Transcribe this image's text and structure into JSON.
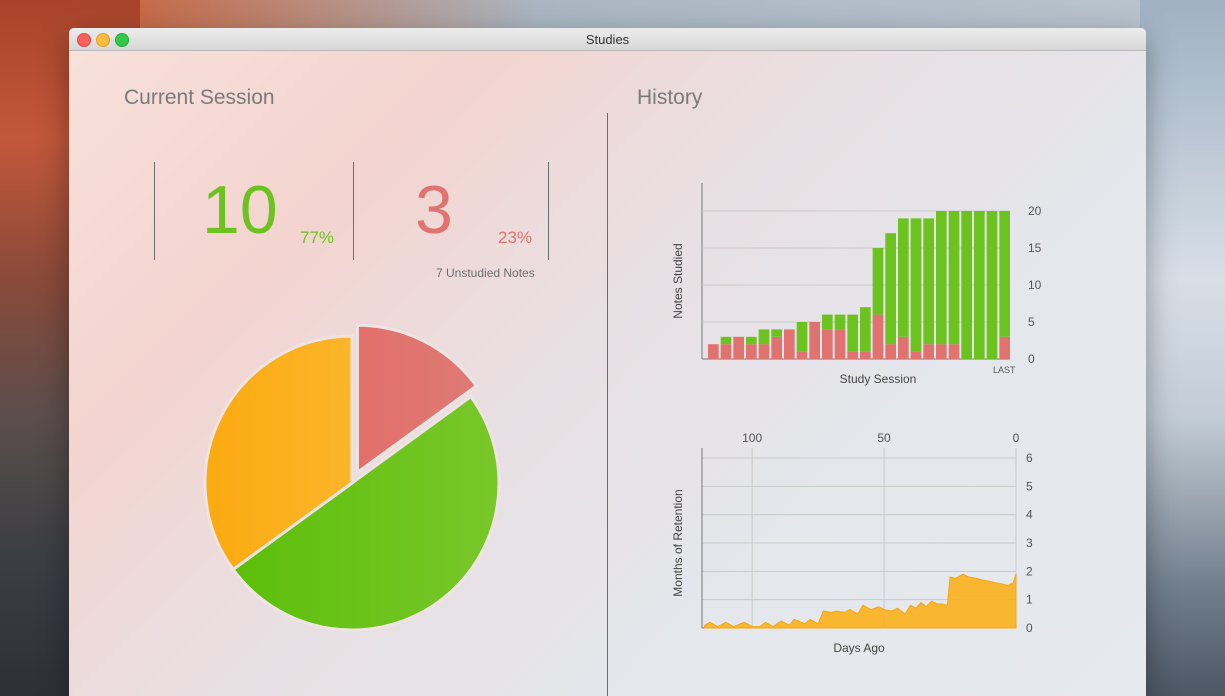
{
  "window": {
    "title": "Studies"
  },
  "current_session": {
    "heading": "Current Session",
    "correct": {
      "count": "10",
      "percent": "77%"
    },
    "incorrect": {
      "count": "3",
      "percent": "23%"
    },
    "unstudied_label": "7 Unstudied Notes",
    "colors": {
      "correct": "#6cc320",
      "incorrect": "#e07370",
      "unstudied": "#fbb01c"
    }
  },
  "history": {
    "heading": "History"
  },
  "chart_data": [
    {
      "type": "bar",
      "stacked": true,
      "xlabel": "Study Session",
      "ylabel": "Notes Studied",
      "x_tick_last": "LAST",
      "ylim": [
        0,
        20
      ],
      "yticks": [
        0,
        5,
        10,
        15,
        20
      ],
      "series": [
        {
          "color": "#e07370",
          "values": [
            2,
            2,
            3,
            2,
            2,
            3,
            4,
            1,
            5,
            4,
            4,
            1,
            1,
            6,
            2,
            3,
            1,
            2,
            2,
            2,
            0,
            0,
            0,
            3
          ]
        },
        {
          "color": "#6cc320",
          "values": [
            0,
            1,
            0,
            1,
            2,
            1,
            0,
            4,
            0,
            2,
            2,
            5,
            6,
            9,
            15,
            16,
            18,
            17,
            18,
            18,
            20,
            20,
            20,
            17
          ]
        }
      ]
    },
    {
      "type": "area",
      "xlabel": "Days Ago",
      "ylabel": "Months of Retention",
      "xticks": [
        100,
        50,
        0
      ],
      "xlim": [
        119,
        0
      ],
      "ylim": [
        0,
        6
      ],
      "yticks": [
        0,
        1,
        2,
        3,
        4,
        5,
        6
      ],
      "color": "#fbb01c",
      "x": [
        118,
        116,
        113,
        110,
        107,
        103,
        100,
        97,
        95,
        92,
        89,
        86,
        84,
        80,
        78,
        75,
        73,
        70,
        68,
        65,
        63,
        60,
        58,
        55,
        52,
        50,
        47,
        45,
        42,
        40,
        38,
        36,
        34,
        32,
        30,
        28,
        26,
        25,
        23,
        20,
        18,
        15,
        13,
        10,
        8,
        5,
        3,
        1,
        0
      ],
      "y": [
        0.1,
        0.2,
        0.05,
        0.2,
        0.05,
        0.2,
        0.05,
        0.05,
        0.2,
        0.05,
        0.25,
        0.1,
        0.3,
        0.15,
        0.3,
        0.15,
        0.6,
        0.55,
        0.6,
        0.55,
        0.65,
        0.5,
        0.8,
        0.65,
        0.75,
        0.65,
        0.6,
        0.7,
        0.5,
        0.8,
        0.7,
        0.9,
        0.75,
        0.95,
        0.85,
        0.85,
        0.8,
        1.8,
        1.75,
        1.9,
        1.8,
        1.75,
        1.7,
        1.65,
        1.6,
        1.55,
        1.5,
        1.6,
        1.9
      ]
    }
  ],
  "pie_data": {
    "type": "pie",
    "slices": [
      {
        "name": "correct",
        "value": 10,
        "color": "#6cc320"
      },
      {
        "name": "incorrect",
        "value": 3,
        "color": "#e07370",
        "exploded": true
      },
      {
        "name": "unstudied",
        "value": 7,
        "color": "#fbb01c"
      }
    ]
  }
}
